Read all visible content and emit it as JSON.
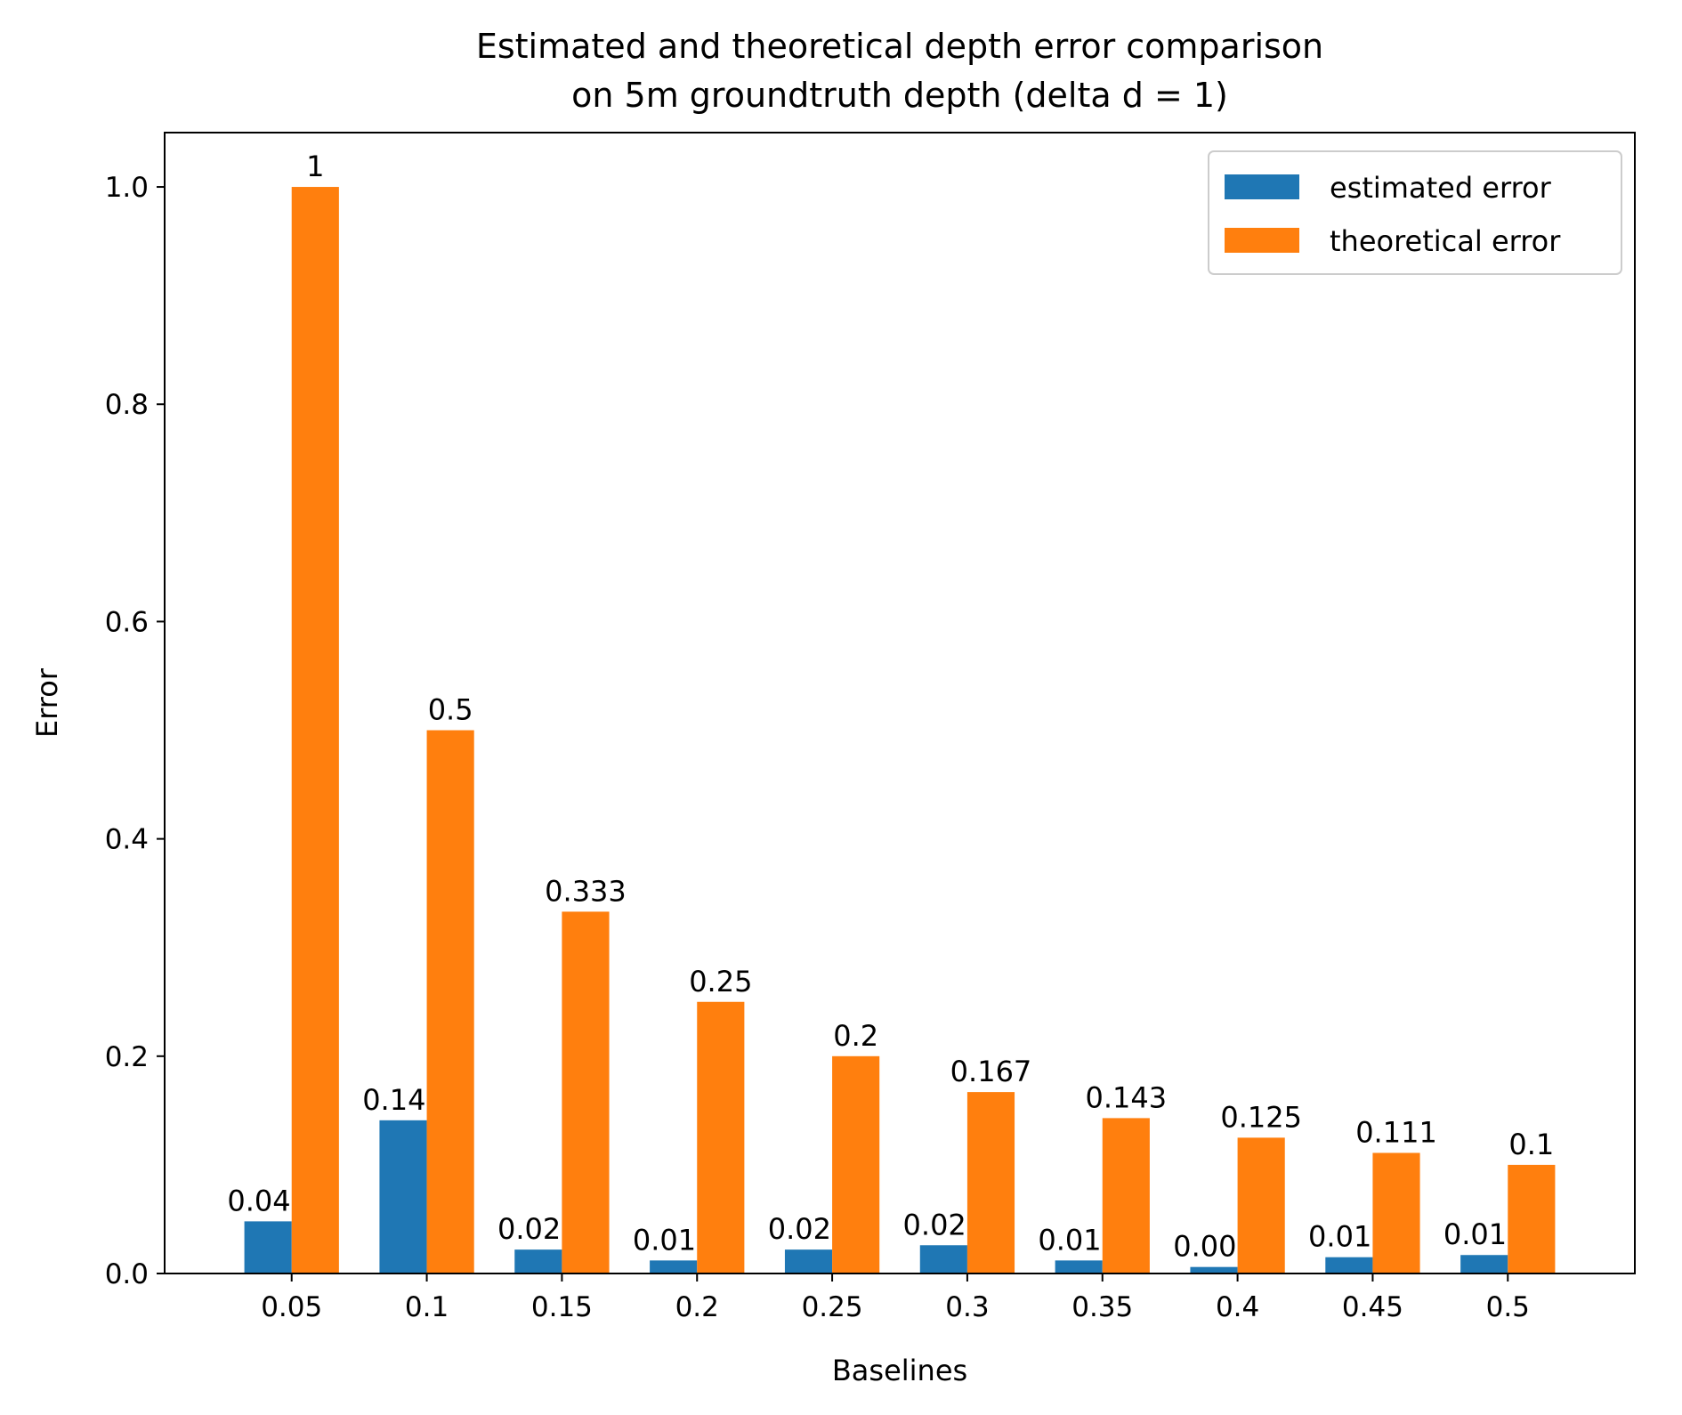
{
  "chart_data": {
    "type": "bar",
    "title": "Estimated and theoretical depth error comparison\non 5m groundtruth depth (delta d = 1)",
    "xlabel": "Baselines",
    "ylabel": "Error",
    "categories": [
      "0.05",
      "0.1",
      "0.15",
      "0.2",
      "0.25",
      "0.3",
      "0.35",
      "0.4",
      "0.45",
      "0.5"
    ],
    "ylim": [
      0,
      1.05
    ],
    "yticks": [
      "0.0",
      "0.2",
      "0.4",
      "0.6",
      "0.8",
      "1.0"
    ],
    "grid": false,
    "legend_position": "top-right",
    "series": [
      {
        "name": "estimated error",
        "color": "#1f77b4",
        "values": [
          0.048,
          0.141,
          0.022,
          0.012,
          0.022,
          0.026,
          0.012,
          0.006,
          0.015,
          0.017
        ],
        "labels": [
          "0.048",
          "0.141",
          "0.022",
          "0.012",
          "0.022",
          "0.026",
          "0.012",
          "0.006",
          "0.015",
          "0.017"
        ]
      },
      {
        "name": "theoretical error",
        "color": "#ff7f0e",
        "values": [
          1,
          0.5,
          0.333,
          0.25,
          0.2,
          0.167,
          0.143,
          0.125,
          0.111,
          0.1
        ],
        "labels": [
          "1",
          "0.5",
          "0.333",
          "0.25",
          "0.2",
          "0.167",
          "0.143",
          "0.125",
          "0.111",
          "0.1"
        ]
      }
    ]
  }
}
